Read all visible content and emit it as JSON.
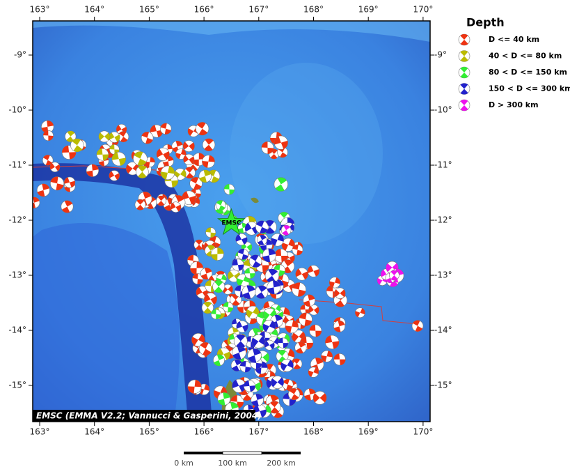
{
  "map": {
    "lon_ticks": [
      {
        "value": 163,
        "label": "163°"
      },
      {
        "value": 164,
        "label": "164°"
      },
      {
        "value": 165,
        "label": "165°"
      },
      {
        "value": 166,
        "label": "166°"
      },
      {
        "value": 167,
        "label": "167°"
      },
      {
        "value": 168,
        "label": "168°"
      },
      {
        "value": 169,
        "label": "169°"
      },
      {
        "value": 170,
        "label": "170°"
      }
    ],
    "lat_ticks": [
      {
        "value": -9,
        "label": "-9°"
      },
      {
        "value": -10,
        "label": "-10°"
      },
      {
        "value": -11,
        "label": "-11°"
      },
      {
        "value": -12,
        "label": "-12°"
      },
      {
        "value": -13,
        "label": "-13°"
      },
      {
        "value": -14,
        "label": "-14°"
      },
      {
        "value": -15,
        "label": "-15°"
      }
    ],
    "center_label": "EMSC",
    "credit": "EMSC (EMMA V2.2; Vannucci & Gasperini, 2004)",
    "legend": {
      "title": "Depth",
      "items": [
        {
          "label": "D <= 40 km",
          "color": "#ee3311"
        },
        {
          "label": "40 < D <= 80 km",
          "color": "#bbbb00"
        },
        {
          "label": "80 < D <= 150 km",
          "color": "#33ee33"
        },
        {
          "label": "150 < D <= 300 km",
          "color": "#2222cc"
        },
        {
          "label": "D > 300 km",
          "color": "#ee11ee"
        }
      ]
    },
    "scale_bar": [
      "0 km",
      "100 km",
      "200 km"
    ]
  }
}
